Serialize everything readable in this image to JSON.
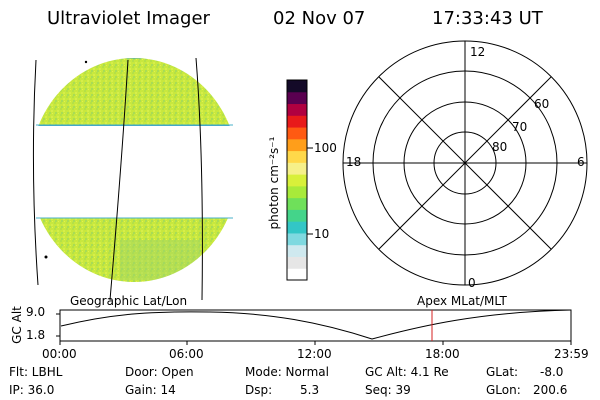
{
  "header": {
    "instrument": "Ultraviolet Imager",
    "date": "02 Nov 07",
    "time": "17:33:43 UT"
  },
  "colorbar": {
    "unit_label": "photon cm⁻²s⁻¹",
    "tick_100": "100",
    "tick_10": "10",
    "colors": [
      "#ffffff",
      "#e6e6e6",
      "#cfe9ef",
      "#7fd9e0",
      "#33c6c6",
      "#44d48a",
      "#6fe05a",
      "#a8ea3a",
      "#d8f03a",
      "#f6f08a",
      "#ffd84a",
      "#ff9e1a",
      "#ff5a12",
      "#e81a1a",
      "#b00040",
      "#5a0050",
      "#140a28"
    ]
  },
  "polar": {
    "mlt_12": "12",
    "mlt_18": "18",
    "mlt_6": "6",
    "mlt_0": "0",
    "lat_60": "60",
    "lat_70": "70",
    "lat_80": "80"
  },
  "timeline": {
    "left_title": "Geographic Lat/Lon",
    "right_title": "Apex MLat/MLT",
    "y_axis_label": "GC Alt",
    "y_top": "9.0",
    "y_bottom": "1.8",
    "x_ticks": [
      "00:00",
      "06:00",
      "12:00",
      "18:00",
      "23:59"
    ],
    "marker_color": "#d62020"
  },
  "status": {
    "flt": "Flt: LBHL",
    "ip": "IP: 36.0",
    "door": "Door: Open",
    "gain": "Gain: 14",
    "mode": "Mode: Normal",
    "dsp_label": "Dsp:",
    "dsp_value": "5.3",
    "gc_alt": "GC Alt: 4.1 Re",
    "seq": "Seq: 39",
    "glat_label": "GLat:",
    "glat_value": "-8.0",
    "glon_label": "GLon:",
    "glon_value": "200.6"
  }
}
